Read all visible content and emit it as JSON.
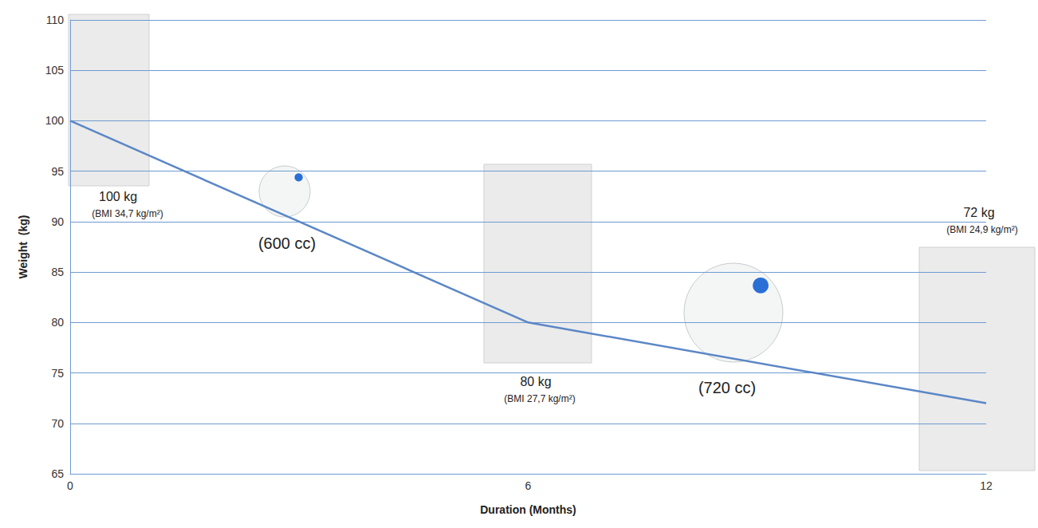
{
  "chart_data": {
    "type": "line",
    "x_label": "Duration (Months)",
    "y_label": "Weight  (kg)",
    "x": [
      0,
      6,
      12
    ],
    "values": [
      100,
      80,
      72
    ],
    "color": "#5b87c6",
    "xlim": [
      0,
      12
    ],
    "xticks": [
      0,
      6,
      12
    ],
    "ylim": [
      65,
      110
    ],
    "yticks": [
      65,
      70,
      75,
      80,
      85,
      90,
      95,
      100,
      105,
      110
    ],
    "grid": true,
    "annotations": [
      "100 kg",
      "(BMI 34,7 kg/m²)",
      "(600 cc)",
      "80 kg",
      "(BMI 27,7 kg/m²)",
      "(720 cc)",
      "72 kg",
      "(BMI 24,9 kg/m²)"
    ]
  }
}
